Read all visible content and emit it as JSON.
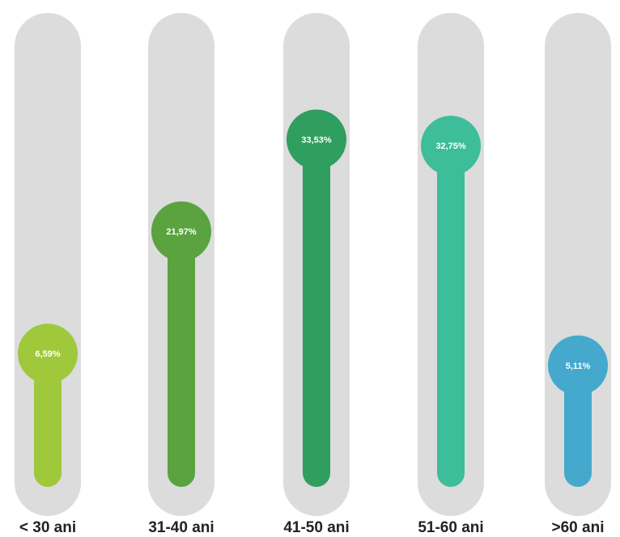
{
  "chart_data": {
    "type": "bar",
    "categories": [
      "< 30 ani",
      "31-40 ani",
      "41-50 ani",
      "51-60 ani",
      ">60 ani"
    ],
    "values": [
      6.59,
      21.97,
      33.53,
      32.75,
      5.11
    ],
    "value_labels": [
      "6,59%",
      "21,97%",
      "33,53%",
      "32,75%",
      "5,11%"
    ],
    "colors": [
      "#9fc83b",
      "#5aa33f",
      "#2f9e5f",
      "#3dbd9a",
      "#44a9cc"
    ],
    "track_color": "#dcdcdc",
    "ylim": [
      0,
      35
    ],
    "grid": false,
    "legend": "none",
    "title": "",
    "xlabel": "",
    "ylabel": ""
  }
}
